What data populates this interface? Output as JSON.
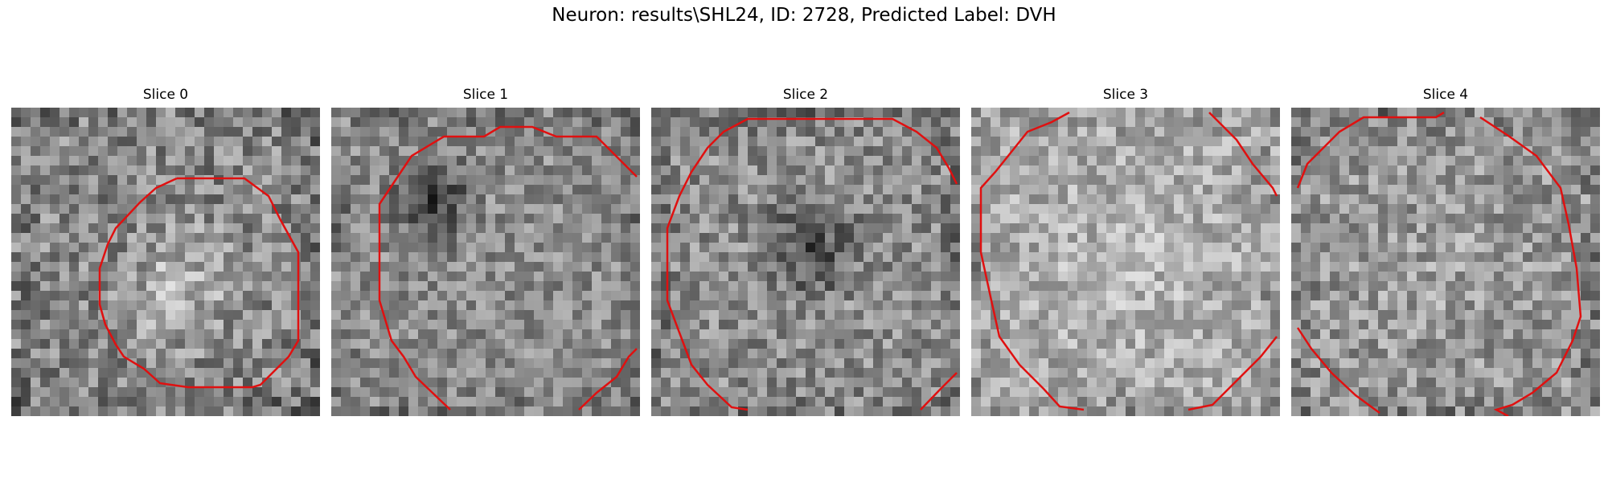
{
  "figure": {
    "title": "Neuron: results\\SHL24, ID: 2728, Predicted Label: DVH"
  },
  "panels": [
    {
      "title": "Slice 0",
      "contour_color": "#e01010",
      "image": "grayscale-noise-bright-blob"
    },
    {
      "title": "Slice 1",
      "contour_color": "#e01010",
      "image": "grayscale-noise-dark-spot"
    },
    {
      "title": "Slice 2",
      "contour_color": "#e01010",
      "image": "grayscale-noise-dark-center"
    },
    {
      "title": "Slice 3",
      "contour_color": "#e01010",
      "image": "grayscale-noise-bright"
    },
    {
      "title": "Slice 4",
      "contour_color": "#e01010",
      "image": "grayscale-noise-medium"
    }
  ]
}
